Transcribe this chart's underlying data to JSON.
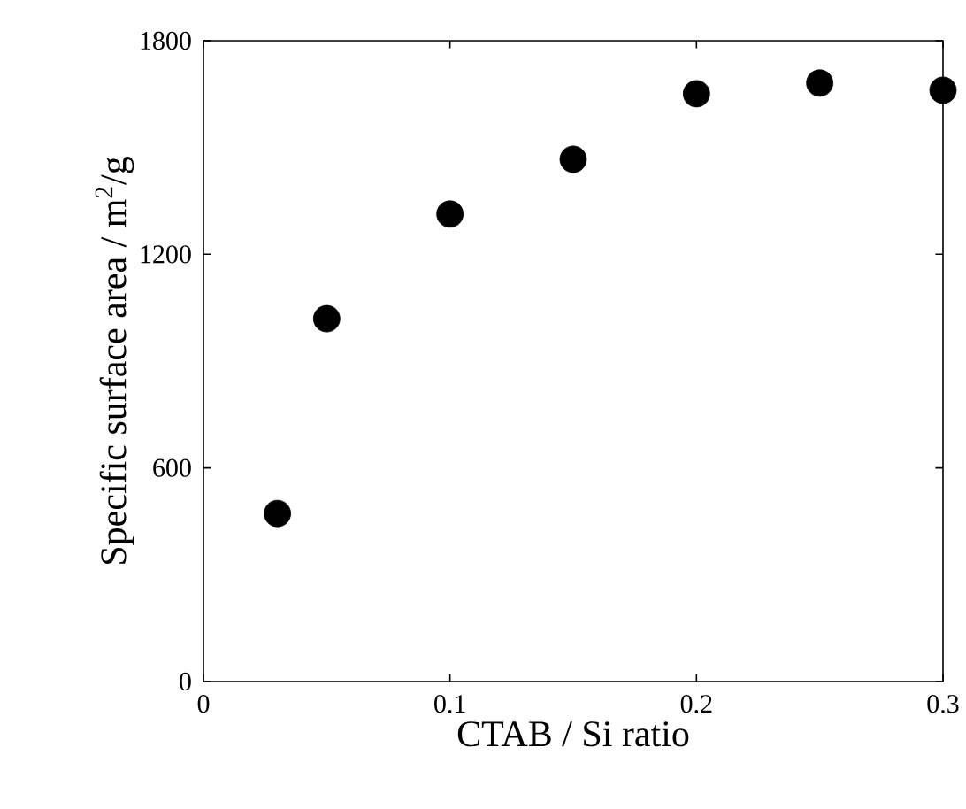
{
  "chart_data": {
    "type": "scatter",
    "xlabel": "CTAB / Si ratio",
    "ylabel": "Specific surface area / m$^{2}$/g",
    "x": [
      0.03,
      0.05,
      0.1,
      0.15,
      0.2,
      0.25,
      0.3
    ],
    "values": [
      472,
      1019,
      1313,
      1467,
      1651,
      1681,
      1661
    ],
    "color": "#000000",
    "marker": "circle",
    "xlim": [
      0,
      0.3
    ],
    "xticks": [
      0,
      0.1,
      0.2,
      0.3
    ],
    "ylim": [
      0,
      1800
    ],
    "yticks": [
      0,
      600,
      1200,
      1800
    ]
  }
}
